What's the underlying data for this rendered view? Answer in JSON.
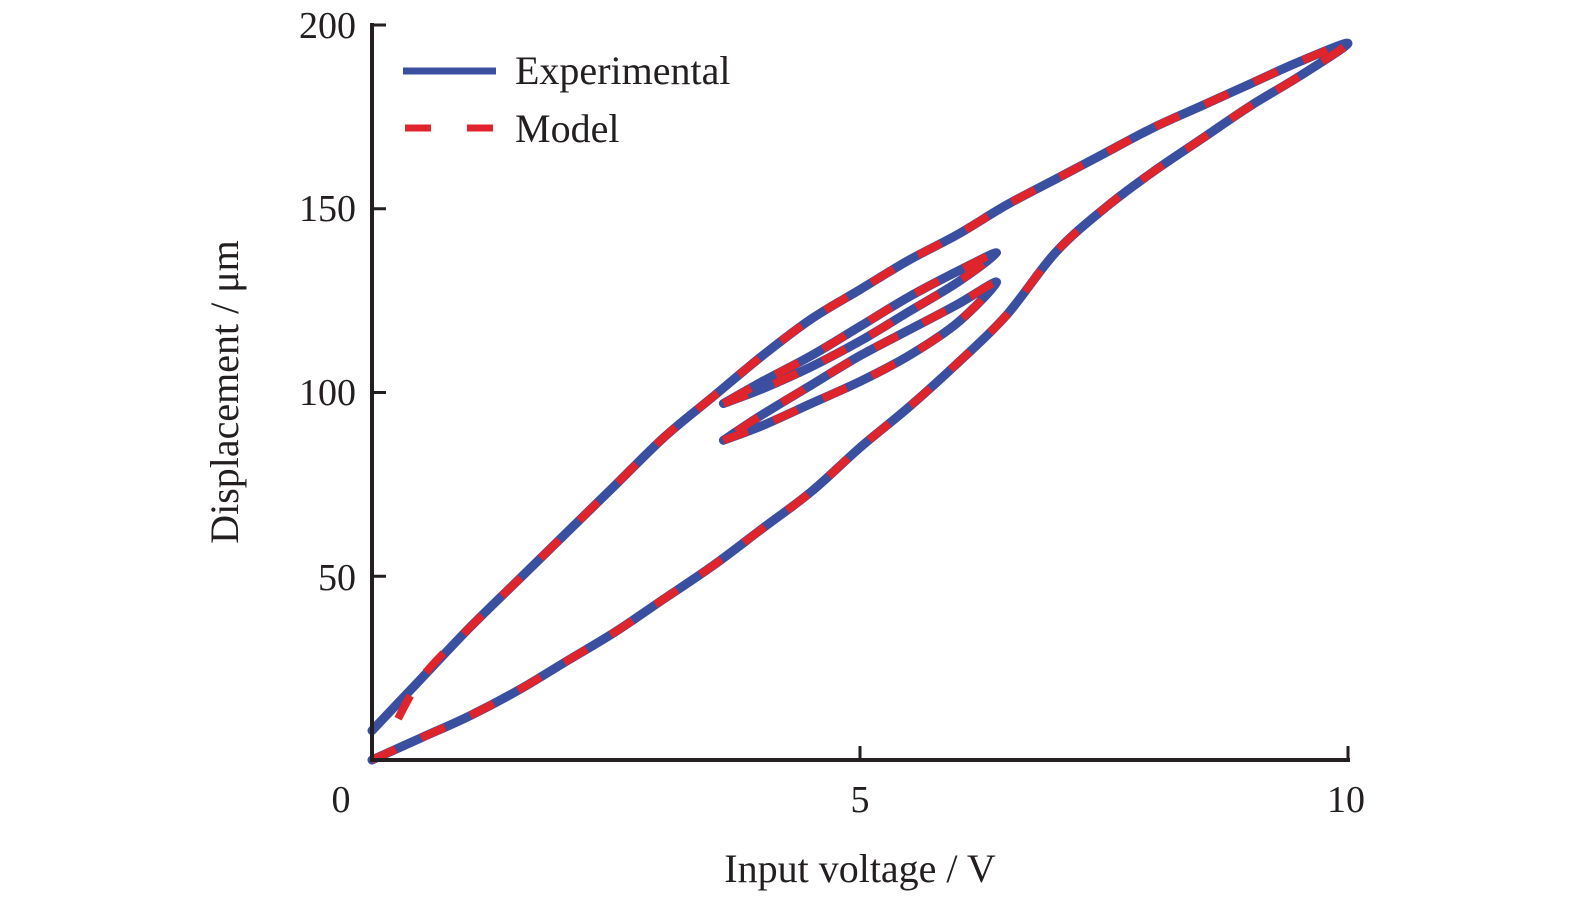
{
  "chart_data": {
    "type": "line",
    "title": "",
    "xlabel": "Input voltage / V",
    "ylabel": "Displacement / μm",
    "xlim": [
      0,
      10
    ],
    "ylim": [
      0,
      200
    ],
    "x_ticks": [
      0,
      5,
      10
    ],
    "x_tick_labels": [
      "0",
      "5",
      "10"
    ],
    "y_ticks": [
      50,
      100,
      150,
      200
    ],
    "y_tick_labels": [
      "50",
      "100",
      "150",
      "200"
    ],
    "grid": false,
    "legend": {
      "position": "top-left",
      "entries": [
        "Experimental",
        "Model"
      ]
    },
    "colors": {
      "experimental": "#3a4fa0",
      "model": "#e0242b",
      "axis": "#231f20"
    },
    "series": [
      {
        "name": "Experimental",
        "style": "solid",
        "segments": [
          {
            "label": "outer-loop",
            "x": [
              0,
              0.5,
              1,
              1.5,
              2,
              2.5,
              3,
              3.5,
              4,
              4.5,
              5,
              5.5,
              6,
              6.5,
              7,
              7.5,
              8,
              8.5,
              9,
              9.5,
              10,
              9.5,
              9,
              8.5,
              8,
              7.5,
              7,
              6.5,
              6,
              5.5,
              5,
              4.5,
              4,
              3.5,
              3,
              2.5,
              2,
              1.5,
              1,
              0.5,
              0
            ],
            "y": [
              0,
              6,
              12,
              19,
              27,
              35,
              44,
              53,
              63,
              73,
              85,
              96,
              108,
              121,
              138,
              150,
              160,
              169,
              178,
              186,
              195,
              190,
              184,
              178,
              172,
              165,
              158,
              151,
              143,
              136,
              128,
              120,
              110,
              99,
              88,
              75,
              62,
              49,
              36,
              22,
              8
            ]
          },
          {
            "label": "inner-loop-1",
            "x": [
              3.6,
              4.0,
              4.5,
              5.0,
              5.5,
              6.0,
              6.4,
              6.0,
              5.5,
              5.0,
              4.5,
              4.0,
              3.6
            ],
            "y": [
              97,
              101,
              107,
              114,
              122,
              130,
              138,
              133,
              126,
              118,
              110,
              103,
              97
            ]
          },
          {
            "label": "inner-loop-2",
            "x": [
              3.6,
              4.0,
              4.5,
              5.0,
              5.5,
              6.0,
              6.4,
              6.0,
              5.5,
              5.0,
              4.5,
              4.0,
              3.6
            ],
            "y": [
              87,
              91,
              97,
              103,
              110,
              119,
              130,
              124,
              117,
              110,
              102,
              94,
              87
            ]
          }
        ]
      },
      {
        "name": "Model",
        "style": "dashed",
        "segments": [
          {
            "label": "outer-loop",
            "x": [
              0,
              0.5,
              1,
              1.5,
              2,
              2.5,
              3,
              3.5,
              4,
              4.5,
              5,
              5.5,
              6,
              6.5,
              7,
              7.5,
              8,
              8.5,
              9,
              9.5,
              10,
              9.5,
              9,
              8.5,
              8,
              7.5,
              7,
              6.5,
              6,
              5.5,
              5,
              4.5,
              4,
              3.5,
              3,
              2.5,
              2,
              1.5,
              1,
              0.5,
              0.15
            ],
            "y": [
              0,
              6,
              12,
              19,
              27,
              35,
              44,
              53,
              63,
              73,
              85,
              96,
              108,
              121,
              138,
              150,
              160,
              169,
              178,
              186,
              195,
              190,
              184,
              178,
              172,
              165,
              158,
              151,
              143,
              136,
              128,
              120,
              110,
              99,
              88,
              75,
              62,
              49,
              36,
              22,
              5
            ]
          },
          {
            "label": "inner-loop-1",
            "x": [
              3.6,
              4.0,
              4.5,
              5.0,
              5.5,
              6.0,
              6.4,
              6.0,
              5.5,
              5.0,
              4.5,
              4.0,
              3.6
            ],
            "y": [
              97,
              101,
              107,
              114,
              122,
              130,
              138,
              133,
              126,
              118,
              110,
              103,
              97
            ]
          },
          {
            "label": "inner-loop-2",
            "x": [
              3.6,
              4.0,
              4.5,
              5.0,
              5.5,
              6.0,
              6.4,
              6.0,
              5.5,
              5.0,
              4.5,
              4.0,
              3.6
            ],
            "y": [
              87,
              91,
              97,
              103,
              110,
              119,
              130,
              124,
              117,
              110,
              102,
              94,
              87
            ]
          }
        ]
      }
    ]
  }
}
